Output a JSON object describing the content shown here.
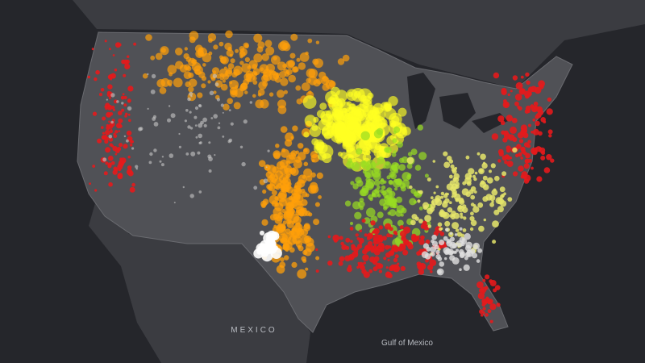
{
  "labels": {
    "country": "MEXICO",
    "sea": "Gulf of Mexico"
  }
}
